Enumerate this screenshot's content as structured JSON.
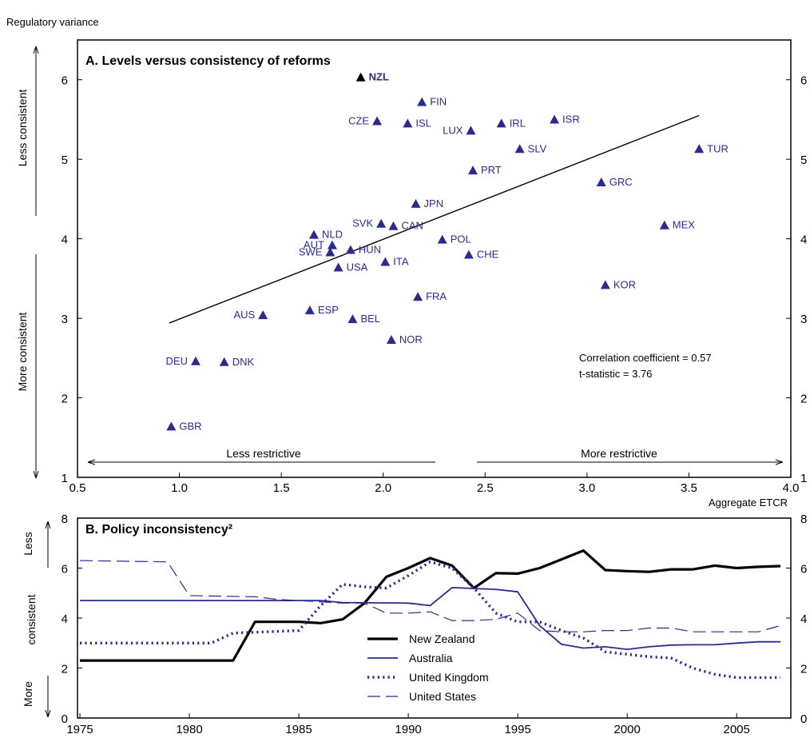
{
  "chart_data": [
    {
      "type": "scatter",
      "title": "A. Levels versus consistency of reforms",
      "ylabel": "Regulatory variance",
      "xlabel": "Aggregate ETCR",
      "xlim": [
        0.5,
        4.0
      ],
      "ylim": [
        1,
        6.5
      ],
      "xticks": [
        0.5,
        1.0,
        1.5,
        2.0,
        2.5,
        3.0,
        3.5,
        4.0
      ],
      "xtick_labels": [
        "0.5",
        "1.0",
        "1.5",
        "2.0",
        "2.5",
        "3.0",
        "3.5",
        "4.0"
      ],
      "yticks": [
        1,
        2,
        3,
        4,
        5,
        6
      ],
      "ytick_labels": [
        "1",
        "2",
        "3",
        "4",
        "5",
        "6"
      ],
      "y_direction_labels": {
        "top": "Less consistent",
        "bottom": "More consistent"
      },
      "x_direction_labels": {
        "left": "Less restrictive",
        "right": "More restrictive"
      },
      "annotations": [
        "Correlation coefficient = 0.57",
        "t-statistic = 3.76"
      ],
      "marker_color": "#2b2b8c",
      "highlight_color": "#000000",
      "trendline": {
        "x": [
          0.95,
          3.55
        ],
        "y": [
          2.94,
          5.55
        ]
      },
      "points": [
        {
          "label": "NZL",
          "x": 1.89,
          "y": 6.03,
          "highlight": true,
          "anchor": "right"
        },
        {
          "label": "FIN",
          "x": 2.19,
          "y": 5.72,
          "anchor": "right"
        },
        {
          "label": "CZE",
          "x": 1.97,
          "y": 5.48,
          "anchor": "left"
        },
        {
          "label": "ISL",
          "x": 2.12,
          "y": 5.45,
          "anchor": "right"
        },
        {
          "label": "LUX",
          "x": 2.43,
          "y": 5.36,
          "anchor": "left"
        },
        {
          "label": "IRL",
          "x": 2.58,
          "y": 5.45,
          "anchor": "right"
        },
        {
          "label": "ISR",
          "x": 2.84,
          "y": 5.5,
          "anchor": "right"
        },
        {
          "label": "SLV",
          "x": 2.67,
          "y": 5.13,
          "anchor": "right"
        },
        {
          "label": "TUR",
          "x": 3.55,
          "y": 5.13,
          "anchor": "right"
        },
        {
          "label": "PRT",
          "x": 2.44,
          "y": 4.86,
          "anchor": "right"
        },
        {
          "label": "GRC",
          "x": 3.07,
          "y": 4.71,
          "anchor": "right"
        },
        {
          "label": "JPN",
          "x": 2.16,
          "y": 4.44,
          "anchor": "right"
        },
        {
          "label": "SVK",
          "x": 1.99,
          "y": 4.19,
          "anchor": "left"
        },
        {
          "label": "CAN",
          "x": 2.05,
          "y": 4.16,
          "anchor": "right"
        },
        {
          "label": "MEX",
          "x": 3.38,
          "y": 4.17,
          "anchor": "right"
        },
        {
          "label": "NLD",
          "x": 1.66,
          "y": 4.05,
          "anchor": "right"
        },
        {
          "label": "POL",
          "x": 2.29,
          "y": 3.99,
          "anchor": "right"
        },
        {
          "label": "AUT",
          "x": 1.75,
          "y": 3.92,
          "anchor": "left"
        },
        {
          "label": "HUN",
          "x": 1.84,
          "y": 3.86,
          "anchor": "right"
        },
        {
          "label": "SWE",
          "x": 1.74,
          "y": 3.83,
          "anchor": "left"
        },
        {
          "label": "CHE",
          "x": 2.42,
          "y": 3.8,
          "anchor": "right"
        },
        {
          "label": "ITA",
          "x": 2.01,
          "y": 3.71,
          "anchor": "right"
        },
        {
          "label": "USA",
          "x": 1.78,
          "y": 3.64,
          "anchor": "right"
        },
        {
          "label": "KOR",
          "x": 3.09,
          "y": 3.42,
          "anchor": "right"
        },
        {
          "label": "FRA",
          "x": 2.17,
          "y": 3.27,
          "anchor": "right"
        },
        {
          "label": "ESP",
          "x": 1.64,
          "y": 3.1,
          "anchor": "right"
        },
        {
          "label": "AUS",
          "x": 1.41,
          "y": 3.04,
          "anchor": "left"
        },
        {
          "label": "BEL",
          "x": 1.85,
          "y": 2.99,
          "anchor": "right"
        },
        {
          "label": "NOR",
          "x": 2.04,
          "y": 2.73,
          "anchor": "right"
        },
        {
          "label": "DEU",
          "x": 1.08,
          "y": 2.46,
          "anchor": "left"
        },
        {
          "label": "DNK",
          "x": 1.22,
          "y": 2.45,
          "anchor": "right"
        },
        {
          "label": "GBR",
          "x": 0.96,
          "y": 1.64,
          "anchor": "right"
        }
      ]
    },
    {
      "type": "line",
      "title": "B. Policy inconsistency²",
      "xlim": [
        1975,
        2007
      ],
      "ylim": [
        0,
        8
      ],
      "xticks": [
        1975,
        1980,
        1985,
        1990,
        1995,
        2000,
        2005
      ],
      "xtick_labels": [
        "1975",
        "1980",
        "1985",
        "1990",
        "1995",
        "2000",
        "2005"
      ],
      "yticks": [
        0,
        2,
        4,
        6,
        8
      ],
      "ytick_labels": [
        "0",
        "2",
        "4",
        "6",
        "8"
      ],
      "y_direction_labels": {
        "top": "Less",
        "middle": "consistent",
        "bottom": "More"
      },
      "legend_position": "bottom-center",
      "series": [
        {
          "name": "New Zealand",
          "color": "#000000",
          "style": "solid-thick",
          "x": [
            1975,
            1982,
            1983,
            1985,
            1986,
            1987,
            1988,
            1989,
            1990,
            1991,
            1992,
            1993,
            1994,
            1995,
            1996,
            1997,
            1998,
            1999,
            2000,
            2001,
            2002,
            2003,
            2004,
            2005,
            2006,
            2007
          ],
          "values": [
            2.3,
            2.3,
            3.85,
            3.85,
            3.8,
            3.95,
            4.6,
            5.65,
            6.0,
            6.4,
            6.1,
            5.2,
            5.8,
            5.78,
            6.0,
            6.35,
            6.7,
            5.92,
            5.88,
            5.85,
            5.95,
            5.95,
            6.1,
            6.0,
            6.05,
            6.08
          ]
        },
        {
          "name": "Australia",
          "color": "#2b2b8c",
          "style": "solid",
          "x": [
            1975,
            1986,
            1987,
            1990,
            1991,
            1992,
            1994,
            1995,
            1996,
            1997,
            1998,
            1999,
            2000,
            2001,
            2002,
            2003,
            2004,
            2005,
            2006,
            2007
          ],
          "values": [
            4.7,
            4.7,
            4.62,
            4.6,
            4.5,
            5.22,
            5.15,
            5.05,
            3.7,
            2.95,
            2.8,
            2.85,
            2.75,
            2.85,
            2.92,
            2.93,
            2.93,
            3.0,
            3.05,
            3.05
          ],
          "line_extent": [
            1975,
            2007
          ]
        },
        {
          "name": "United Kingdom",
          "color": "#2b2b8c",
          "style": "dotted",
          "x": [
            1975,
            1981,
            1982,
            1985,
            1986,
            1987,
            1988,
            1989,
            1990,
            1991,
            1992,
            1993,
            1994,
            1995,
            1996,
            1997,
            1998,
            1999,
            2000,
            2001,
            2002,
            2003,
            2004,
            2005,
            2006,
            2007
          ],
          "values": [
            3.0,
            3.0,
            3.4,
            3.5,
            4.5,
            5.35,
            5.25,
            5.2,
            5.7,
            6.25,
            6.0,
            5.2,
            4.2,
            3.85,
            3.85,
            3.5,
            3.2,
            2.65,
            2.55,
            2.45,
            2.4,
            2.0,
            1.75,
            1.62,
            1.62,
            1.62
          ]
        },
        {
          "name": "United States",
          "color": "#2b2b8c",
          "style": "dashed",
          "x": [
            1975,
            1979,
            1980,
            1983,
            1984,
            1987,
            1988,
            1989,
            1990,
            1991,
            1992,
            1993,
            1994,
            1995,
            1996,
            1997,
            1998,
            1999,
            2000,
            2001,
            2002,
            2003,
            2004,
            2005,
            2006,
            2007
          ],
          "values": [
            6.3,
            6.25,
            4.9,
            4.85,
            4.75,
            4.6,
            4.6,
            4.2,
            4.2,
            4.25,
            3.9,
            3.9,
            3.95,
            4.2,
            3.5,
            3.45,
            3.45,
            3.5,
            3.5,
            3.6,
            3.6,
            3.45,
            3.45,
            3.45,
            3.45,
            3.7
          ]
        }
      ]
    }
  ]
}
